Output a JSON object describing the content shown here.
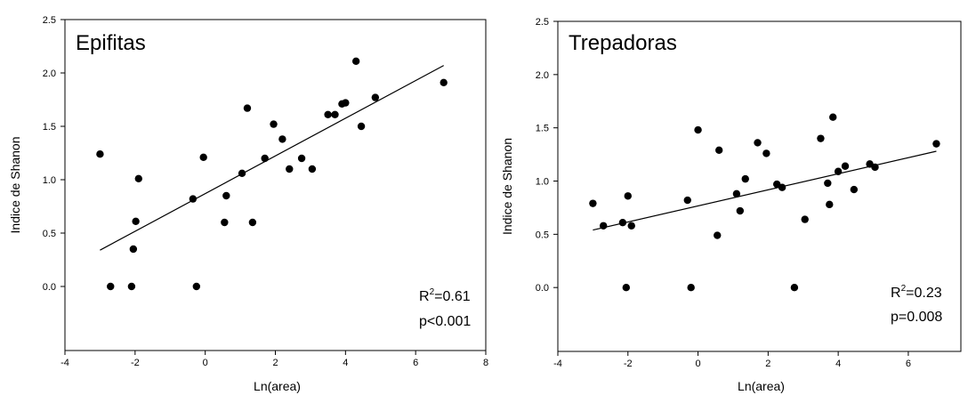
{
  "chart_data": [
    {
      "type": "scatter",
      "title": "Epifitas",
      "xlabel": "Ln(area)",
      "ylabel": "Indice de Shanon",
      "xlim": [
        -4,
        8
      ],
      "ylim": [
        -0.6,
        2.5
      ],
      "xticks": [
        "-4",
        "-2",
        "0",
        "2",
        "4",
        "6",
        "8"
      ],
      "yticks": [
        "0.0",
        "0.5",
        "1.0",
        "1.5",
        "2.0",
        "2.5"
      ],
      "grid": false,
      "annotation": {
        "r2_label": "R",
        "r2_sup": "2",
        "r2_value": "=0.61",
        "p_text": "p<0.001"
      },
      "regression_line": {
        "x": [
          -3.0,
          6.8
        ],
        "y": [
          0.34,
          2.07
        ]
      },
      "points": [
        {
          "x": -3.0,
          "y": 1.24
        },
        {
          "x": -2.7,
          "y": 0.0
        },
        {
          "x": -2.1,
          "y": 0.0
        },
        {
          "x": -2.05,
          "y": 0.35
        },
        {
          "x": -1.98,
          "y": 0.61
        },
        {
          "x": -1.9,
          "y": 1.01
        },
        {
          "x": -0.35,
          "y": 0.82
        },
        {
          "x": -0.25,
          "y": 0.0
        },
        {
          "x": -0.05,
          "y": 1.21
        },
        {
          "x": 0.55,
          "y": 0.6
        },
        {
          "x": 0.6,
          "y": 0.85
        },
        {
          "x": 1.05,
          "y": 1.06
        },
        {
          "x": 1.2,
          "y": 1.67
        },
        {
          "x": 1.35,
          "y": 0.6
        },
        {
          "x": 1.7,
          "y": 1.2
        },
        {
          "x": 1.95,
          "y": 1.52
        },
        {
          "x": 2.2,
          "y": 1.38
        },
        {
          "x": 2.4,
          "y": 1.1
        },
        {
          "x": 2.75,
          "y": 1.2
        },
        {
          "x": 3.05,
          "y": 1.1
        },
        {
          "x": 3.5,
          "y": 1.61
        },
        {
          "x": 3.7,
          "y": 1.61
        },
        {
          "x": 3.9,
          "y": 1.71
        },
        {
          "x": 4.0,
          "y": 1.72
        },
        {
          "x": 4.3,
          "y": 2.11
        },
        {
          "x": 4.45,
          "y": 1.5
        },
        {
          "x": 4.85,
          "y": 1.77
        },
        {
          "x": 6.8,
          "y": 1.91
        }
      ]
    },
    {
      "type": "scatter",
      "title": "Trepadoras",
      "xlabel": "Ln(area)",
      "ylabel": "Indice de Shanon",
      "xlim": [
        -4,
        7.5
      ],
      "ylim": [
        -0.6,
        2.5
      ],
      "xticks": [
        "-4",
        "-2",
        "0",
        "2",
        "4",
        "6"
      ],
      "yticks": [
        "0.0",
        "0.5",
        "1.0",
        "1.5",
        "2.0",
        "2.5"
      ],
      "grid": false,
      "annotation": {
        "r2_label": "R",
        "r2_sup": "2",
        "r2_value": "=0.23",
        "p_text": "p=0.008"
      },
      "regression_line": {
        "x": [
          -3.0,
          6.8
        ],
        "y": [
          0.54,
          1.28
        ]
      },
      "points": [
        {
          "x": -3.0,
          "y": 0.79
        },
        {
          "x": -2.7,
          "y": 0.58
        },
        {
          "x": -2.15,
          "y": 0.61
        },
        {
          "x": -2.05,
          "y": 0.0
        },
        {
          "x": -2.0,
          "y": 0.86
        },
        {
          "x": -1.9,
          "y": 0.58
        },
        {
          "x": -0.3,
          "y": 0.82
        },
        {
          "x": -0.2,
          "y": 0.0
        },
        {
          "x": 0.0,
          "y": 1.48
        },
        {
          "x": 0.55,
          "y": 0.49
        },
        {
          "x": 0.6,
          "y": 1.29
        },
        {
          "x": 1.1,
          "y": 0.88
        },
        {
          "x": 1.2,
          "y": 0.72
        },
        {
          "x": 1.35,
          "y": 1.02
        },
        {
          "x": 1.7,
          "y": 1.36
        },
        {
          "x": 1.95,
          "y": 1.26
        },
        {
          "x": 2.25,
          "y": 0.97
        },
        {
          "x": 2.4,
          "y": 0.94
        },
        {
          "x": 2.75,
          "y": 0.0
        },
        {
          "x": 3.05,
          "y": 0.64
        },
        {
          "x": 3.5,
          "y": 1.4
        },
        {
          "x": 3.7,
          "y": 0.98
        },
        {
          "x": 3.75,
          "y": 0.78
        },
        {
          "x": 3.85,
          "y": 1.6
        },
        {
          "x": 4.0,
          "y": 1.09
        },
        {
          "x": 4.2,
          "y": 1.14
        },
        {
          "x": 4.45,
          "y": 0.92
        },
        {
          "x": 4.9,
          "y": 1.16
        },
        {
          "x": 5.05,
          "y": 1.13
        },
        {
          "x": 6.8,
          "y": 1.35
        }
      ]
    }
  ]
}
